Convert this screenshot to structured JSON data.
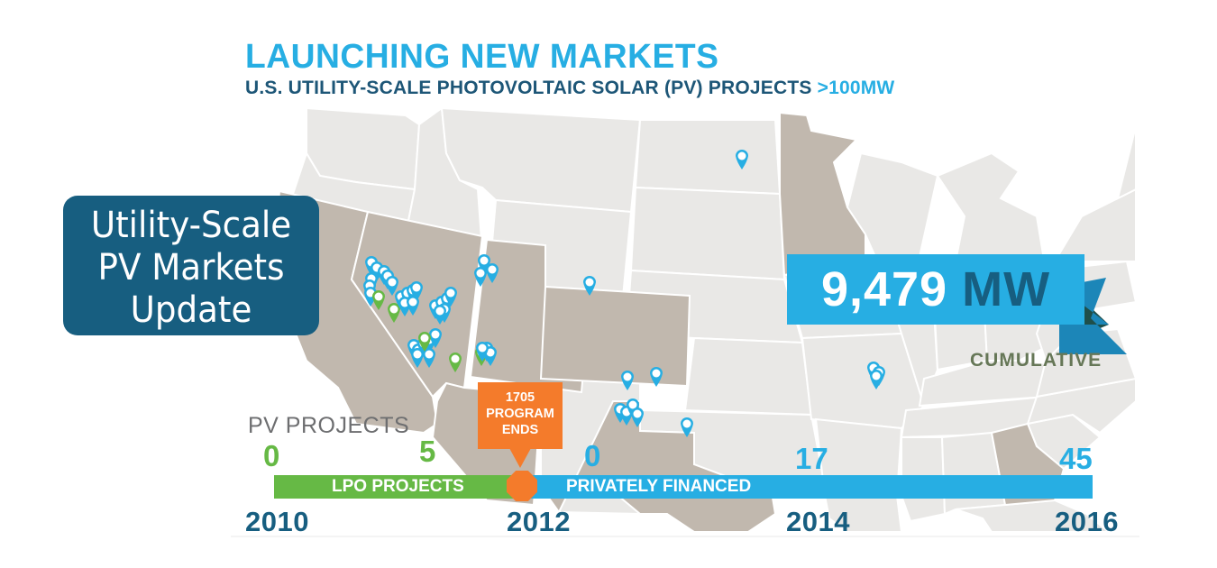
{
  "header": {
    "title": "LAUNCHING NEW MARKETS",
    "subtitle": "U.S. UTILITY-SCALE PHOTOVOLTAIC SOLAR (PV) PROJECTS",
    "subtitle_highlight": ">100MW"
  },
  "badge": {
    "lines": [
      "Utility-Scale",
      "PV Markets",
      "Update"
    ]
  },
  "total": {
    "value": "9,479",
    "unit": "MW",
    "caption": "CUMULATIVE"
  },
  "map": {
    "highlighted_states": [
      "California",
      "Nevada",
      "Utah",
      "Arizona",
      "Colorado",
      "Texas",
      "Minnesota",
      "Georgia"
    ],
    "marker_types": {
      "lpo": {
        "label": "LPO projects",
        "color": "#66b945"
      },
      "private": {
        "label": "Privately financed projects",
        "color": "#27aee3"
      }
    }
  },
  "timeline": {
    "label": "PV PROJECTS",
    "counts": [
      {
        "year": "2010",
        "value": "0",
        "series": "lpo"
      },
      {
        "year": "2011",
        "value": "5",
        "series": "lpo"
      },
      {
        "year": "2012",
        "value": "0",
        "series": "private"
      },
      {
        "year": "2014",
        "value": "17",
        "series": "private"
      },
      {
        "year": "2016",
        "value": "45",
        "series": "private"
      }
    ],
    "segments": {
      "lpo": "LPO PROJECTS",
      "private": "PRIVATELY FINANCED"
    },
    "callout": [
      "1705",
      "PROGRAM",
      "ENDS"
    ],
    "years": [
      "2010",
      "2012",
      "2014",
      "2016"
    ]
  },
  "colors": {
    "accent_blue": "#27aee3",
    "dark_blue": "#175e80",
    "green": "#66b945",
    "orange": "#f47b2b",
    "state_highlight": "#c1b8ae",
    "state_default": "#e9e8e6",
    "cumulative_text": "#667757"
  }
}
